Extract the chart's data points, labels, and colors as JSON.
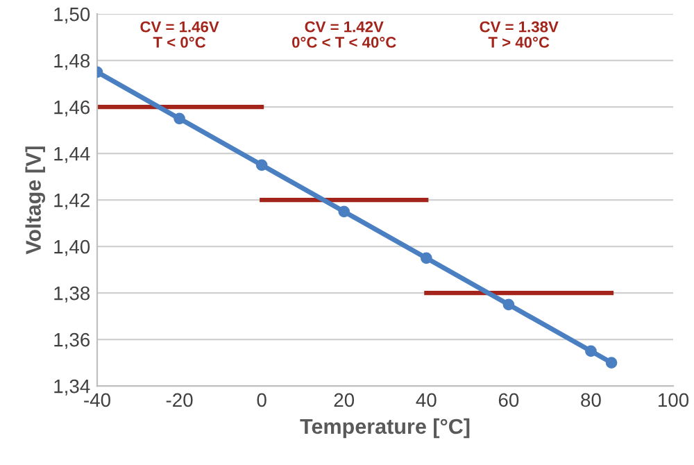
{
  "chart_data": {
    "type": "line",
    "xlabel": "Temperature [°C]",
    "ylabel": "Voltage [V]",
    "xlim": [
      -40,
      100
    ],
    "xticks": [
      -40,
      -20,
      0,
      20,
      40,
      60,
      80,
      100
    ],
    "ylim": [
      1.34,
      1.5
    ],
    "yticks": [
      {
        "value": 1.34,
        "label": "1,34"
      },
      {
        "value": 1.36,
        "label": "1,36"
      },
      {
        "value": 1.38,
        "label": "1,38"
      },
      {
        "value": 1.4,
        "label": "1,40"
      },
      {
        "value": 1.42,
        "label": "1,42"
      },
      {
        "value": 1.44,
        "label": "1,44"
      },
      {
        "value": 1.46,
        "label": "1,46"
      },
      {
        "value": 1.48,
        "label": "1,48"
      },
      {
        "value": 1.5,
        "label": "1,50"
      }
    ],
    "grid": "y",
    "legend": false,
    "series": [
      {
        "color": "#4a7fc1",
        "marker": "circle",
        "x": [
          -40,
          -20,
          0,
          20,
          40,
          60,
          80,
          85
        ],
        "values": [
          1.475,
          1.455,
          1.435,
          1.415,
          1.395,
          1.375,
          1.355,
          1.35
        ]
      },
      {
        "color": "#a3241b",
        "marker": "none",
        "x": [
          -40,
          0
        ],
        "values": [
          1.46,
          1.46
        ]
      },
      {
        "color": "#a3241b",
        "marker": "none",
        "x": [
          0,
          40
        ],
        "values": [
          1.42,
          1.42
        ]
      },
      {
        "color": "#a3241b",
        "marker": "none",
        "x": [
          40,
          85
        ],
        "values": [
          1.38,
          1.38
        ]
      }
    ],
    "annotations": [
      "CV = 1.46V\nT < 0°C",
      "CV = 1.42V\n0°C < T < 40°C",
      "CV = 1.38V\nT > 40°C"
    ]
  }
}
